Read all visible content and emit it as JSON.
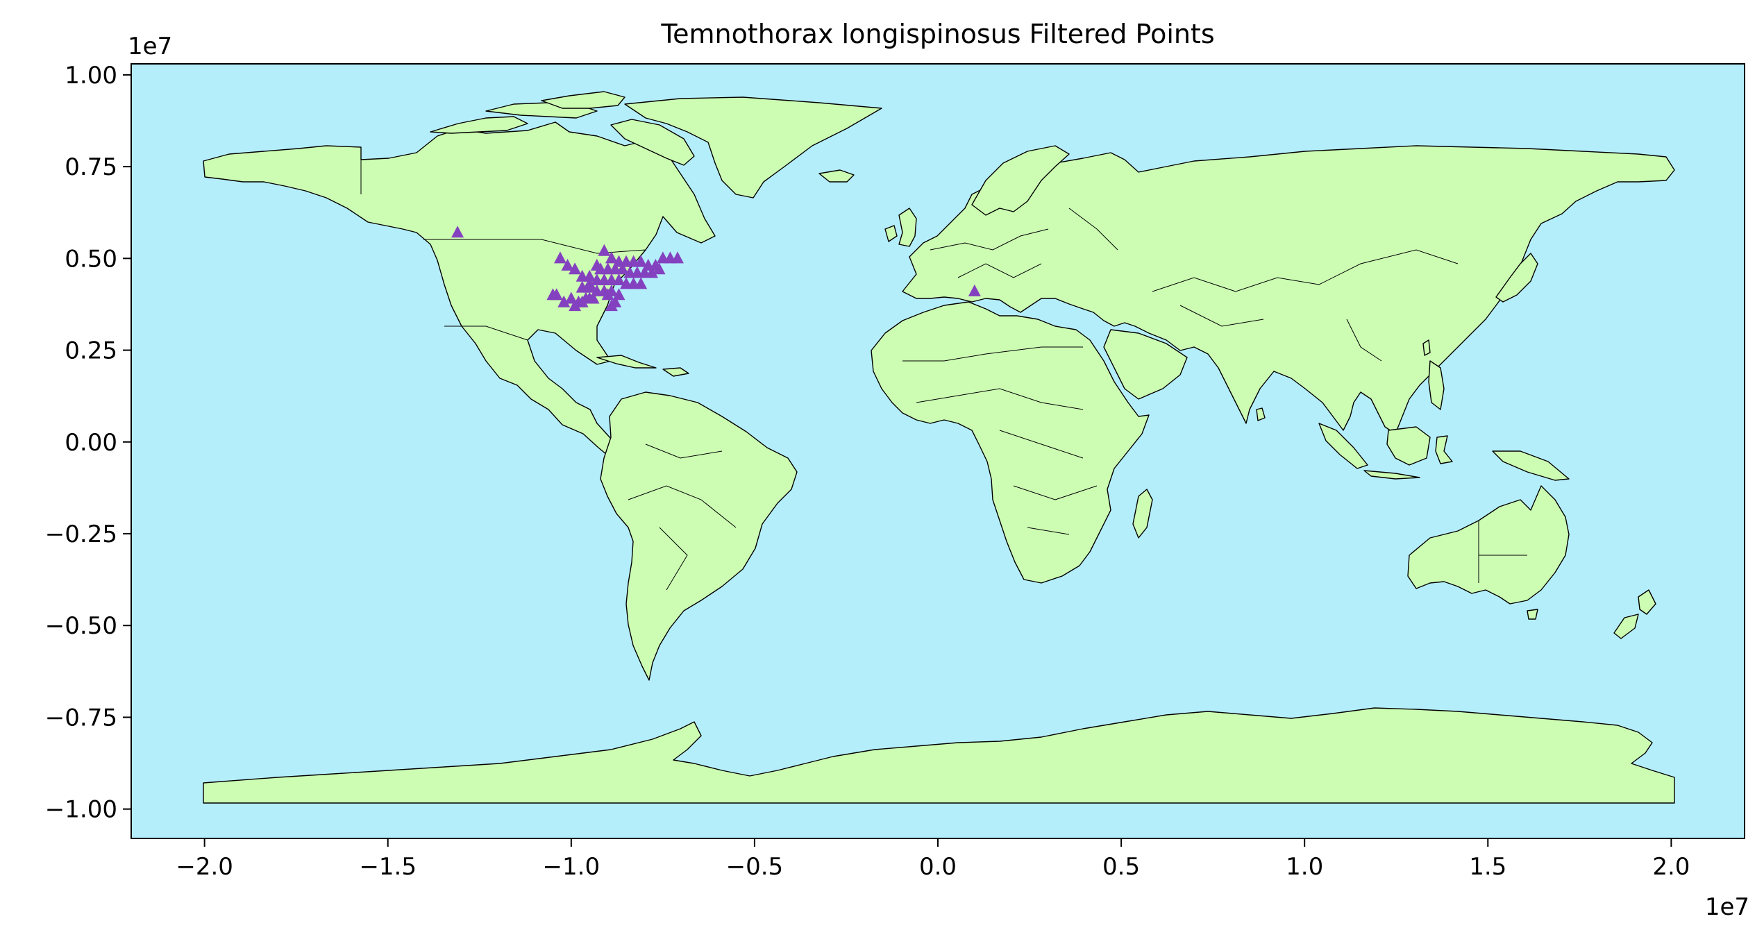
{
  "chart_data": {
    "type": "scatter",
    "title": "Temnothorax longispinosus Filtered Points",
    "xlabel": "",
    "ylabel": "",
    "x_offset_label": "1e7",
    "y_offset_label": "1e7",
    "xlim": [
      -2.2,
      2.2
    ],
    "ylim": [
      -1.08,
      1.03
    ],
    "x_ticks": [
      -2.0,
      -1.5,
      -1.0,
      -0.5,
      0.0,
      0.5,
      1.0,
      1.5,
      2.0
    ],
    "x_tick_labels": [
      "−2.0",
      "−1.5",
      "−1.0",
      "−0.5",
      "0.0",
      "0.5",
      "1.0",
      "1.5",
      "2.0"
    ],
    "y_ticks": [
      1.0,
      0.75,
      0.5,
      0.25,
      0.0,
      -0.25,
      -0.5,
      -0.75,
      -1.0
    ],
    "y_tick_labels": [
      "1.00",
      "0.75",
      "0.50",
      "0.25",
      "0.00",
      "−0.25",
      "−0.50",
      "−0.75",
      "−1.00"
    ],
    "grid": false,
    "colors": {
      "ocean": "#b5eefb",
      "land": "#ccfdb3",
      "border": "#000000",
      "marker": "#8441bf"
    },
    "marker": "triangle",
    "series": [
      {
        "x": [
          -1.31,
          -0.91,
          -0.89,
          -0.87,
          -0.85,
          -0.83,
          -0.81,
          -0.79,
          -0.77,
          -0.75,
          -0.73,
          -0.71,
          -0.92,
          -0.9,
          -0.88,
          -0.86,
          -0.84,
          -0.82,
          -0.8,
          -0.78,
          -0.76,
          -0.95,
          -0.93,
          -0.91,
          -0.89,
          -0.87,
          -0.85,
          -0.83,
          -0.81,
          -0.97,
          -0.95,
          -0.93,
          -0.91,
          -0.89,
          -0.87,
          -1.03,
          -1.01,
          -0.99,
          -0.97,
          -0.95,
          -0.93,
          -1.05,
          -1.04,
          -1.0,
          -0.98,
          -0.96,
          -0.94,
          -0.88,
          -1.02,
          -0.99,
          -0.97,
          -0.95,
          -0.9,
          -0.89,
          0.1
        ],
        "y": [
          0.57,
          0.52,
          0.5,
          0.49,
          0.49,
          0.49,
          0.49,
          0.48,
          0.48,
          0.5,
          0.5,
          0.5,
          0.47,
          0.47,
          0.47,
          0.47,
          0.46,
          0.46,
          0.46,
          0.46,
          0.47,
          0.45,
          0.44,
          0.44,
          0.44,
          0.44,
          0.43,
          0.43,
          0.43,
          0.42,
          0.42,
          0.41,
          0.41,
          0.41,
          0.4,
          0.5,
          0.48,
          0.47,
          0.45,
          0.43,
          0.48,
          0.4,
          0.4,
          0.39,
          0.38,
          0.39,
          0.39,
          0.38,
          0.38,
          0.37,
          0.38,
          0.39,
          0.4,
          0.37,
          0.41
        ]
      }
    ]
  }
}
